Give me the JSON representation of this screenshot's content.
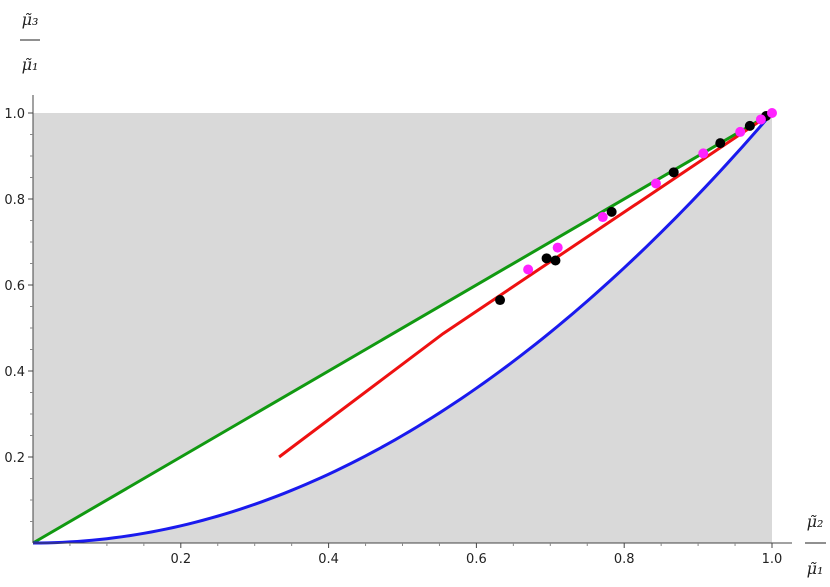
{
  "chart_data": {
    "type": "line",
    "xlabel": {
      "numerator": "μ̃₂",
      "denominator": "μ̃₁"
    },
    "ylabel": {
      "numerator": "μ̃₃",
      "denominator": "μ̃₁"
    },
    "xlim": [
      0,
      1.0
    ],
    "ylim": [
      0,
      1.0
    ],
    "xticks": [
      "0.2",
      "0.4",
      "0.6",
      "0.8",
      "1.0"
    ],
    "yticks": [
      "0.2",
      "0.4",
      "0.6",
      "0.8",
      "1.0"
    ],
    "grid": false,
    "background_region": {
      "fill": "#d9d9d9",
      "x": [
        0,
        1
      ],
      "y": [
        0,
        1
      ],
      "excluded_between": "x^2 and x"
    },
    "series": [
      {
        "kind": "line",
        "color": "#119911",
        "x": [
          0,
          1
        ],
        "y": [
          0,
          1
        ]
      },
      {
        "kind": "line",
        "color": "#1a1aee",
        "function": "y = x^2"
      },
      {
        "kind": "line",
        "color": "#ee1111",
        "x": [
          0.333,
          0.555,
          1.0
        ],
        "y": [
          0.2,
          0.487,
          1.0
        ]
      },
      {
        "kind": "scatter",
        "color": "#000000",
        "x": [
          0.632,
          0.695,
          0.707,
          0.783,
          0.867,
          0.93,
          0.97,
          0.992
        ],
        "y": [
          0.565,
          0.662,
          0.657,
          0.77,
          0.862,
          0.93,
          0.97,
          0.993
        ]
      },
      {
        "kind": "scatter",
        "color": "#ff22ff",
        "x": [
          0.67,
          0.71,
          0.771,
          0.843,
          0.907,
          0.957,
          0.985,
          1.0
        ],
        "y": [
          0.636,
          0.687,
          0.758,
          0.836,
          0.906,
          0.956,
          0.985,
          1.0
        ]
      }
    ]
  }
}
